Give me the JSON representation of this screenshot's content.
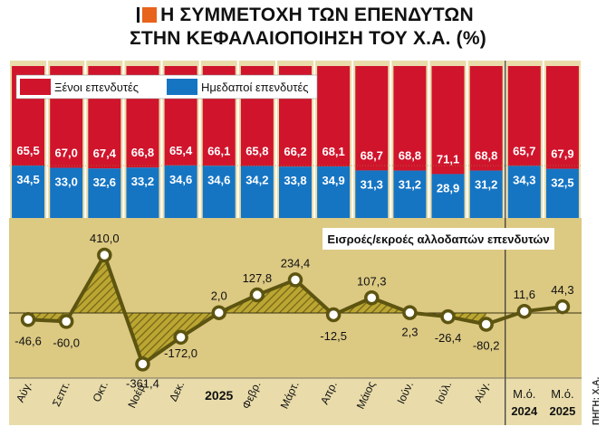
{
  "title": {
    "line1": "Η ΣΥΜΜΕΤΟΧΗ ΤΩΝ ΕΠΕΝΔΥΤΩΝ",
    "line2": "ΣΤΗΝ ΚΕΦΑΛΑΙΟΠΟΙΗΣΗ ΤΟΥ Χ.Α. (%)"
  },
  "source": "ΠΗΓΗ: Χ.Α.",
  "colors": {
    "foreign": "#d0142c",
    "domestic": "#1675c3",
    "lower_bg": "#dcc982",
    "line": "#5c5410",
    "marker": "#ffffff"
  },
  "chart_data": [
    {
      "type": "bar",
      "stacked": true,
      "percent": true,
      "categories": [
        "Αύγ.",
        "Σεπτ.",
        "Οκτ.",
        "Νοέμ.",
        "Δεκ.",
        "2025",
        "Φεβρ.",
        "Μάρτ.",
        "Απρ.",
        "Μάιος",
        "Ιούν.",
        "Ιούλ.",
        "Αύγ.",
        "Μ.ό. 2024",
        "Μ.ό. 2025"
      ],
      "series": [
        {
          "name": "Ξένοι επενδυτές",
          "color": "#d0142c",
          "values": [
            65.5,
            67.0,
            67.4,
            66.8,
            65.4,
            66.1,
            65.8,
            66.2,
            68.1,
            68.7,
            68.8,
            71.1,
            68.8,
            65.7,
            67.9
          ],
          "labels": [
            "65,5",
            "67,0",
            "67,4",
            "66,8",
            "65,4",
            "66,1",
            "65,8",
            "66,2",
            "68,1",
            "68,7",
            "68,8",
            "71,1",
            "68,8",
            "65,7",
            "67,9"
          ]
        },
        {
          "name": "Ημεδαποί επενδυτές",
          "color": "#1675c3",
          "values": [
            34.5,
            33.0,
            32.6,
            33.2,
            34.6,
            34.6,
            34.2,
            33.8,
            34.9,
            31.3,
            31.2,
            28.9,
            31.2,
            34.3,
            32.5
          ],
          "labels": [
            "34,5",
            "33,0",
            "32,6",
            "33,2",
            "34,6",
            "34,6",
            "34,2",
            "33,8",
            "34,9",
            "31,3",
            "31,2",
            "28,9",
            "31,2",
            "34,3",
            "32,5"
          ]
        }
      ],
      "legend": "top-left"
    },
    {
      "type": "line",
      "title": "Εισροές/εκροές αλλοδαπών επενδυτών",
      "categories": [
        "Αύγ.",
        "Σεπτ.",
        "Οκτ.",
        "Νοέμ.",
        "Δεκ.",
        "2025",
        "Φεβρ.",
        "Μάρτ.",
        "Απρ.",
        "Μάιος",
        "Ιούν.",
        "Ιούλ.",
        "Αύγ.",
        "Μ.ό. 2024",
        "Μ.ό. 2025"
      ],
      "values": [
        -46.6,
        -60.0,
        410.0,
        -361.4,
        -172.0,
        2.0,
        127.8,
        234.4,
        -12.5,
        107.3,
        2.3,
        -26.4,
        -80.2,
        11.6,
        44.3
      ],
      "labels": [
        "-46,6",
        "-60,0",
        "410,0",
        "-361,4",
        "-172,0",
        "2,0",
        "127,8",
        "234,4",
        "-12,5",
        "107,3",
        "2,3",
        "-26,4",
        "-80,2",
        "11,6",
        "44,3"
      ],
      "baseline": 0,
      "area_fill": "hatched"
    }
  ],
  "x_axis": {
    "labels": [
      {
        "l1": "Αύγ."
      },
      {
        "l1": "Σεπτ."
      },
      {
        "l1": "Οκτ."
      },
      {
        "l1": "Νοέμ."
      },
      {
        "l1": "Δεκ."
      },
      {
        "l1": "2025",
        "bold": true
      },
      {
        "l1": "Φεβρ."
      },
      {
        "l1": "Μάρτ."
      },
      {
        "l1": "Απρ."
      },
      {
        "l1": "Μάιος"
      },
      {
        "l1": "Ιούν."
      },
      {
        "l1": "Ιούλ."
      },
      {
        "l1": "Αύγ."
      },
      {
        "l1": "Μ.ό.",
        "l2": "2024"
      },
      {
        "l1": "Μ.ό.",
        "l2": "2025"
      }
    ]
  }
}
